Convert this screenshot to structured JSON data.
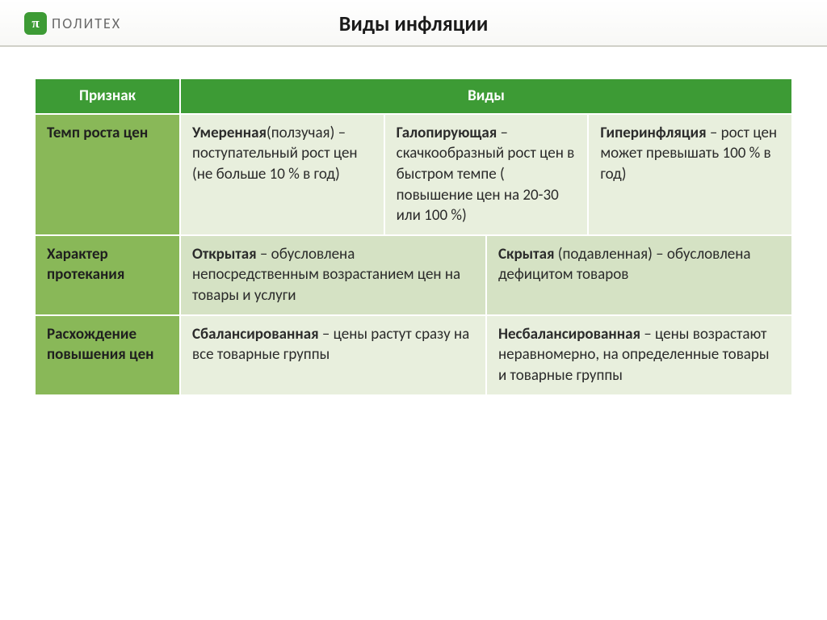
{
  "header": {
    "logo_symbol": "π",
    "logo_text": "ПОЛИТЕХ",
    "title": "Виды инфляции"
  },
  "table": {
    "columns": {
      "sign": "Признак",
      "types": "Виды"
    },
    "rows": [
      {
        "label": "Темп роста цен",
        "cells": [
          {
            "term": "Умеренная",
            "rest": "(ползучая) – поступательный рост цен (не больше 10 % в год)"
          },
          {
            "term": "Галопирующая",
            "rest": " – скачкообразный рост цен в быстром темпе ( повышение цен на 20-30 или 100 %)"
          },
          {
            "term": "Гиперинфляция",
            "rest": " – рост цен может превышать 100 % в год)"
          }
        ]
      },
      {
        "label": "Характер протекания",
        "cells": [
          {
            "term": "Открытая",
            "rest": " – обусловлена непосредственным возрастанием цен на товары и услуги"
          },
          {
            "term": "Скрытая",
            "rest": " (подавленная) – обусловлена дефицитом товаров"
          }
        ]
      },
      {
        "label": "Расхождение повышения цен",
        "cells": [
          {
            "term": "Сбалансированная",
            "rest": " – цены растут сразу на все товарные группы"
          },
          {
            "term": "Несбалансированная",
            "rest": " – цены возрастают неравномерно, на определенные товары и товарные группы"
          }
        ]
      }
    ]
  },
  "style": {
    "header_bg": "#3d9b35",
    "row_label_bg": "#89b858",
    "cell_alt_a": "#e8efdd",
    "cell_alt_b": "#d5e2c4",
    "border_color": "#ffffff",
    "title_fontsize": 26,
    "cell_fontsize": 19
  }
}
